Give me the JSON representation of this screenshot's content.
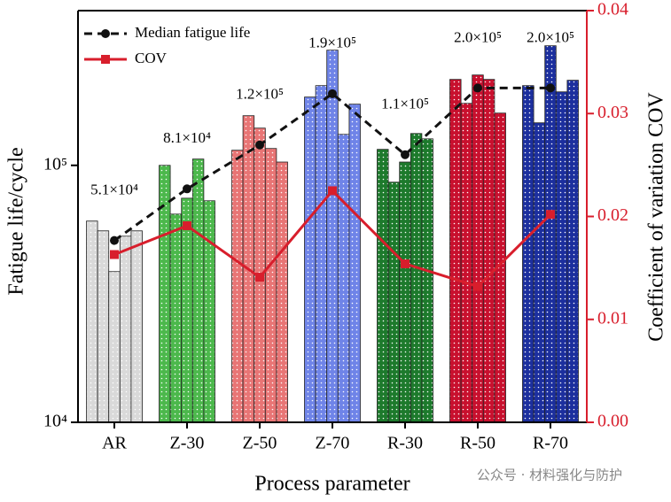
{
  "chart_data": {
    "type": "bar",
    "categories": [
      "AR",
      "Z-30",
      "Z-50",
      "Z-70",
      "R-30",
      "R-50",
      "R-70"
    ],
    "bar_groups": [
      {
        "color": "#d9d9d9",
        "values": [
          60700,
          55600,
          38600,
          53000,
          55600
        ]
      },
      {
        "color": "#4cb84c",
        "values": [
          100000,
          64600,
          74500,
          105800,
          72800
        ]
      },
      {
        "color": "#e87575",
        "values": [
          114500,
          156000,
          139600,
          116300,
          103000
        ]
      },
      {
        "color": "#6f84e8",
        "values": [
          184400,
          204300,
          280700,
          132000,
          173000
        ]
      },
      {
        "color": "#1d7a2c",
        "values": [
          115400,
          86000,
          103000,
          133000,
          126800
        ]
      },
      {
        "color": "#c8102e",
        "values": [
          216000,
          174300,
          224700,
          216000,
          159700
        ]
      },
      {
        "color": "#1c2f9e",
        "values": [
          204300,
          146400,
          292000,
          193200,
          214300
        ]
      }
    ],
    "series": [
      {
        "name": "Median fatigue life",
        "type": "line",
        "color": "#111111",
        "dashed": true,
        "values": [
          51000,
          81000,
          120000,
          190000,
          110000,
          200000,
          200000
        ],
        "value_labels": [
          "5.1×10⁴",
          "8.1×10⁴",
          "1.2×10⁵",
          "1.9×10⁵",
          "1.1×10⁵",
          "2.0×10⁵",
          "2.0×10⁵"
        ]
      },
      {
        "name": "COV",
        "type": "line",
        "color": "#d81e2c",
        "axis": "y2",
        "values": [
          0.0163,
          0.0191,
          0.0141,
          0.0225,
          0.0154,
          0.0132,
          0.0202
        ]
      }
    ],
    "x_label": "Process parameter",
    "y_label": "Fatigue life/cycle",
    "y2_label": "Coefficient of variation COV",
    "ylim": [
      10000,
      400000
    ],
    "log_y": true,
    "yticks": [
      {
        "value": 10000,
        "label": "10⁴"
      },
      {
        "value": 100000,
        "label": "10⁵"
      }
    ],
    "y2lim": [
      0,
      0.04
    ],
    "y2ticks": [
      {
        "value": 0,
        "label": "0.00"
      },
      0.01,
      0.02,
      0.03,
      0.04
    ],
    "y2_color": "#d81e2c",
    "legend": "upper left",
    "watermark": "公众号 · 材料强化与防护"
  }
}
